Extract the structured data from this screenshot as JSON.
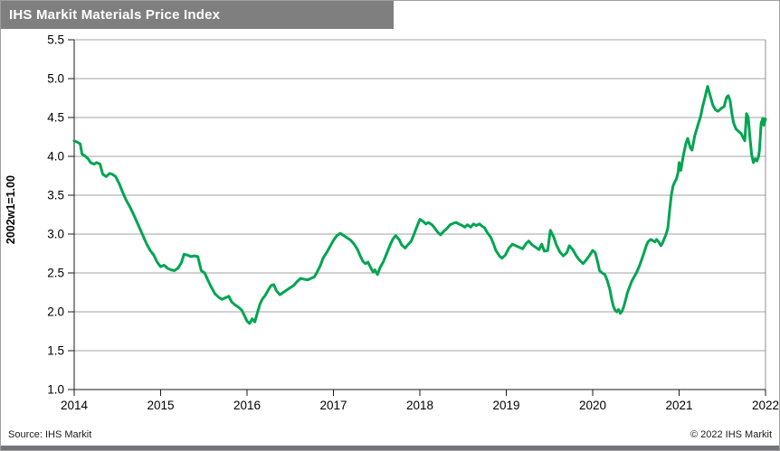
{
  "window": {
    "title": "IHS Markit Materials Price Index"
  },
  "footer": {
    "source": "Source: IHS Markit",
    "copyright": "© 2022 IHS Markit"
  },
  "colors": {
    "title_bar_bg": "#7f7f7f",
    "title_text": "#ffffff",
    "line": "#00a551",
    "gridline": "#a3a3a3",
    "frame": "#8f8f8f",
    "axis": "#1a1a1a",
    "text": "#000000",
    "bottom_bar": "#73737b"
  },
  "chart_data": {
    "type": "line",
    "title": "IHS Markit Materials Price Index",
    "xlabel": "",
    "ylabel": "2002w1=1.00",
    "xlim": [
      2014,
      2022
    ],
    "ylim": [
      1.0,
      5.5
    ],
    "x_ticks": [
      2014,
      2015,
      2016,
      2017,
      2018,
      2019,
      2020,
      2021,
      2022
    ],
    "y_ticks": [
      1.0,
      1.5,
      2.0,
      2.5,
      3.0,
      3.5,
      4.0,
      4.5,
      5.0,
      5.5
    ],
    "grid": "horizontal",
    "legend_position": "none",
    "series": [
      {
        "name": "IHS Markit Materials Price Index",
        "points": [
          [
            2014.0,
            4.2
          ],
          [
            2014.04,
            4.18
          ],
          [
            2014.07,
            4.16
          ],
          [
            2014.09,
            4.03
          ],
          [
            2014.13,
            4.0
          ],
          [
            2014.16,
            3.97
          ],
          [
            2014.19,
            3.92
          ],
          [
            2014.23,
            3.9
          ],
          [
            2014.26,
            3.92
          ],
          [
            2014.3,
            3.9
          ],
          [
            2014.33,
            3.77
          ],
          [
            2014.37,
            3.74
          ],
          [
            2014.41,
            3.78
          ],
          [
            2014.44,
            3.77
          ],
          [
            2014.48,
            3.74
          ],
          [
            2014.52,
            3.65
          ],
          [
            2014.56,
            3.54
          ],
          [
            2014.6,
            3.44
          ],
          [
            2014.64,
            3.36
          ],
          [
            2014.68,
            3.27
          ],
          [
            2014.72,
            3.17
          ],
          [
            2014.76,
            3.07
          ],
          [
            2014.8,
            2.97
          ],
          [
            2014.84,
            2.87
          ],
          [
            2014.88,
            2.79
          ],
          [
            2014.92,
            2.73
          ],
          [
            2014.96,
            2.64
          ],
          [
            2015.0,
            2.58
          ],
          [
            2015.04,
            2.6
          ],
          [
            2015.08,
            2.56
          ],
          [
            2015.12,
            2.54
          ],
          [
            2015.16,
            2.53
          ],
          [
            2015.2,
            2.56
          ],
          [
            2015.24,
            2.63
          ],
          [
            2015.27,
            2.74
          ],
          [
            2015.31,
            2.73
          ],
          [
            2015.35,
            2.71
          ],
          [
            2015.39,
            2.72
          ],
          [
            2015.43,
            2.71
          ],
          [
            2015.47,
            2.53
          ],
          [
            2015.51,
            2.5
          ],
          [
            2015.55,
            2.4
          ],
          [
            2015.59,
            2.31
          ],
          [
            2015.63,
            2.23
          ],
          [
            2015.67,
            2.19
          ],
          [
            2015.71,
            2.16
          ],
          [
            2015.75,
            2.18
          ],
          [
            2015.79,
            2.2
          ],
          [
            2015.82,
            2.13
          ],
          [
            2015.86,
            2.09
          ],
          [
            2015.9,
            2.06
          ],
          [
            2015.94,
            2.02
          ],
          [
            2015.97,
            1.95
          ],
          [
            2016.0,
            1.88
          ],
          [
            2016.03,
            1.85
          ],
          [
            2016.06,
            1.91
          ],
          [
            2016.09,
            1.87
          ],
          [
            2016.12,
            1.99
          ],
          [
            2016.15,
            2.1
          ],
          [
            2016.18,
            2.17
          ],
          [
            2016.21,
            2.21
          ],
          [
            2016.25,
            2.29
          ],
          [
            2016.28,
            2.34
          ],
          [
            2016.31,
            2.35
          ],
          [
            2016.34,
            2.27
          ],
          [
            2016.38,
            2.22
          ],
          [
            2016.42,
            2.25
          ],
          [
            2016.46,
            2.28
          ],
          [
            2016.5,
            2.31
          ],
          [
            2016.54,
            2.34
          ],
          [
            2016.58,
            2.39
          ],
          [
            2016.62,
            2.43
          ],
          [
            2016.66,
            2.42
          ],
          [
            2016.7,
            2.41
          ],
          [
            2016.74,
            2.43
          ],
          [
            2016.78,
            2.45
          ],
          [
            2016.81,
            2.51
          ],
          [
            2016.85,
            2.6
          ],
          [
            2016.88,
            2.69
          ],
          [
            2016.92,
            2.76
          ],
          [
            2016.96,
            2.84
          ],
          [
            2017.0,
            2.92
          ],
          [
            2017.04,
            2.98
          ],
          [
            2017.08,
            3.01
          ],
          [
            2017.12,
            2.98
          ],
          [
            2017.16,
            2.95
          ],
          [
            2017.2,
            2.92
          ],
          [
            2017.24,
            2.87
          ],
          [
            2017.28,
            2.8
          ],
          [
            2017.31,
            2.72
          ],
          [
            2017.34,
            2.65
          ],
          [
            2017.37,
            2.62
          ],
          [
            2017.4,
            2.64
          ],
          [
            2017.43,
            2.57
          ],
          [
            2017.46,
            2.51
          ],
          [
            2017.48,
            2.54
          ],
          [
            2017.51,
            2.48
          ],
          [
            2017.54,
            2.57
          ],
          [
            2017.58,
            2.65
          ],
          [
            2017.62,
            2.76
          ],
          [
            2017.66,
            2.87
          ],
          [
            2017.69,
            2.94
          ],
          [
            2017.72,
            2.98
          ],
          [
            2017.76,
            2.93
          ],
          [
            2017.79,
            2.86
          ],
          [
            2017.83,
            2.82
          ],
          [
            2017.86,
            2.86
          ],
          [
            2017.9,
            2.91
          ],
          [
            2017.93,
            2.99
          ],
          [
            2017.96,
            3.08
          ],
          [
            2018.0,
            3.19
          ],
          [
            2018.03,
            3.17
          ],
          [
            2018.07,
            3.13
          ],
          [
            2018.1,
            3.15
          ],
          [
            2018.14,
            3.12
          ],
          [
            2018.17,
            3.08
          ],
          [
            2018.21,
            3.02
          ],
          [
            2018.24,
            2.99
          ],
          [
            2018.28,
            3.04
          ],
          [
            2018.32,
            3.08
          ],
          [
            2018.35,
            3.12
          ],
          [
            2018.39,
            3.14
          ],
          [
            2018.42,
            3.15
          ],
          [
            2018.45,
            3.13
          ],
          [
            2018.49,
            3.11
          ],
          [
            2018.52,
            3.09
          ],
          [
            2018.55,
            3.12
          ],
          [
            2018.59,
            3.09
          ],
          [
            2018.62,
            3.13
          ],
          [
            2018.65,
            3.11
          ],
          [
            2018.69,
            3.13
          ],
          [
            2018.72,
            3.1
          ],
          [
            2018.75,
            3.08
          ],
          [
            2018.78,
            3.02
          ],
          [
            2018.82,
            2.96
          ],
          [
            2018.85,
            2.88
          ],
          [
            2018.88,
            2.79
          ],
          [
            2018.92,
            2.72
          ],
          [
            2018.95,
            2.69
          ],
          [
            2018.99,
            2.73
          ],
          [
            2019.03,
            2.82
          ],
          [
            2019.07,
            2.87
          ],
          [
            2019.11,
            2.85
          ],
          [
            2019.15,
            2.83
          ],
          [
            2019.19,
            2.81
          ],
          [
            2019.23,
            2.88
          ],
          [
            2019.26,
            2.91
          ],
          [
            2019.3,
            2.86
          ],
          [
            2019.34,
            2.83
          ],
          [
            2019.38,
            2.8
          ],
          [
            2019.41,
            2.87
          ],
          [
            2019.44,
            2.78
          ],
          [
            2019.48,
            2.79
          ],
          [
            2019.51,
            3.05
          ],
          [
            2019.55,
            2.96
          ],
          [
            2019.58,
            2.86
          ],
          [
            2019.62,
            2.77
          ],
          [
            2019.66,
            2.72
          ],
          [
            2019.7,
            2.76
          ],
          [
            2019.73,
            2.85
          ],
          [
            2019.77,
            2.8
          ],
          [
            2019.81,
            2.72
          ],
          [
            2019.85,
            2.66
          ],
          [
            2019.89,
            2.62
          ],
          [
            2019.92,
            2.66
          ],
          [
            2019.96,
            2.72
          ],
          [
            2020.0,
            2.79
          ],
          [
            2020.03,
            2.76
          ],
          [
            2020.06,
            2.63
          ],
          [
            2020.08,
            2.53
          ],
          [
            2020.11,
            2.5
          ],
          [
            2020.14,
            2.48
          ],
          [
            2020.17,
            2.4
          ],
          [
            2020.2,
            2.28
          ],
          [
            2020.22,
            2.16
          ],
          [
            2020.24,
            2.07
          ],
          [
            2020.26,
            2.02
          ],
          [
            2020.28,
            2.0
          ],
          [
            2020.3,
            2.03
          ],
          [
            2020.32,
            1.98
          ],
          [
            2020.34,
            2.01
          ],
          [
            2020.36,
            2.07
          ],
          [
            2020.38,
            2.15
          ],
          [
            2020.4,
            2.24
          ],
          [
            2020.43,
            2.33
          ],
          [
            2020.45,
            2.39
          ],
          [
            2020.48,
            2.45
          ],
          [
            2020.51,
            2.51
          ],
          [
            2020.54,
            2.59
          ],
          [
            2020.57,
            2.68
          ],
          [
            2020.6,
            2.78
          ],
          [
            2020.62,
            2.85
          ],
          [
            2020.64,
            2.9
          ],
          [
            2020.67,
            2.93
          ],
          [
            2020.69,
            2.92
          ],
          [
            2020.72,
            2.9
          ],
          [
            2020.74,
            2.93
          ],
          [
            2020.77,
            2.89
          ],
          [
            2020.79,
            2.85
          ],
          [
            2020.81,
            2.89
          ],
          [
            2020.83,
            2.95
          ],
          [
            2020.85,
            3.0
          ],
          [
            2020.87,
            3.08
          ],
          [
            2020.89,
            3.3
          ],
          [
            2020.91,
            3.5
          ],
          [
            2020.93,
            3.62
          ],
          [
            2020.95,
            3.67
          ],
          [
            2020.97,
            3.71
          ],
          [
            2020.99,
            3.8
          ],
          [
            2021.0,
            3.92
          ],
          [
            2021.02,
            3.82
          ],
          [
            2021.05,
            4.02
          ],
          [
            2021.08,
            4.17
          ],
          [
            2021.1,
            4.23
          ],
          [
            2021.13,
            4.11
          ],
          [
            2021.15,
            4.08
          ],
          [
            2021.18,
            4.26
          ],
          [
            2021.22,
            4.41
          ],
          [
            2021.25,
            4.52
          ],
          [
            2021.27,
            4.63
          ],
          [
            2021.3,
            4.76
          ],
          [
            2021.33,
            4.9
          ],
          [
            2021.36,
            4.78
          ],
          [
            2021.39,
            4.66
          ],
          [
            2021.42,
            4.6
          ],
          [
            2021.45,
            4.58
          ],
          [
            2021.49,
            4.62
          ],
          [
            2021.52,
            4.64
          ],
          [
            2021.55,
            4.76
          ],
          [
            2021.57,
            4.78
          ],
          [
            2021.59,
            4.72
          ],
          [
            2021.61,
            4.55
          ],
          [
            2021.63,
            4.43
          ],
          [
            2021.66,
            4.35
          ],
          [
            2021.69,
            4.32
          ],
          [
            2021.72,
            4.29
          ],
          [
            2021.74,
            4.24
          ],
          [
            2021.76,
            4.2
          ],
          [
            2021.78,
            4.55
          ],
          [
            2021.8,
            4.5
          ],
          [
            2021.82,
            4.24
          ],
          [
            2021.84,
            4.02
          ],
          [
            2021.86,
            3.92
          ],
          [
            2021.88,
            3.97
          ],
          [
            2021.9,
            3.94
          ],
          [
            2021.92,
            4.0
          ],
          [
            2021.93,
            4.08
          ],
          [
            2021.95,
            4.43
          ],
          [
            2021.97,
            4.49
          ],
          [
            2021.98,
            4.4
          ],
          [
            2022.0,
            4.48
          ]
        ]
      }
    ]
  }
}
